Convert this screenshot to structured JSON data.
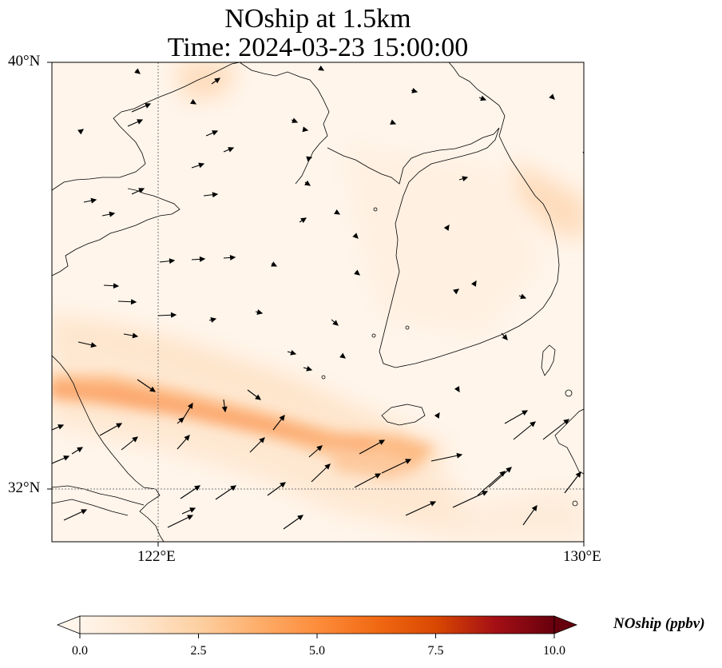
{
  "title_line1": "NOship at 1.5km",
  "title_line2": "Time: 2024-03-23 15:00:00",
  "map": {
    "extent": {
      "lon_min": 120,
      "lon_max": 130,
      "lat_min": 31,
      "lat_max": 40
    },
    "lat_ticks": [
      {
        "value": 40,
        "label": "40°N"
      },
      {
        "value": 32,
        "label": "32°N"
      }
    ],
    "lon_ticks": [
      {
        "value": 122,
        "label": "122°E"
      },
      {
        "value": 130,
        "label": "130°E"
      }
    ],
    "gridlines": "dotted"
  },
  "colorbar": {
    "label": "NOship (ppbv)",
    "colormap": "Oranges",
    "range": [
      0,
      10
    ],
    "ticks": [
      "0.0",
      "2.5",
      "5.0",
      "7.5",
      "10.0"
    ],
    "extend": "both",
    "colors": [
      "#fff5eb",
      "#fee6ce",
      "#fdd0a2",
      "#fdae6b",
      "#fd8d3c",
      "#f16913",
      "#d94801",
      "#a50f15",
      "#67000d"
    ]
  }
}
